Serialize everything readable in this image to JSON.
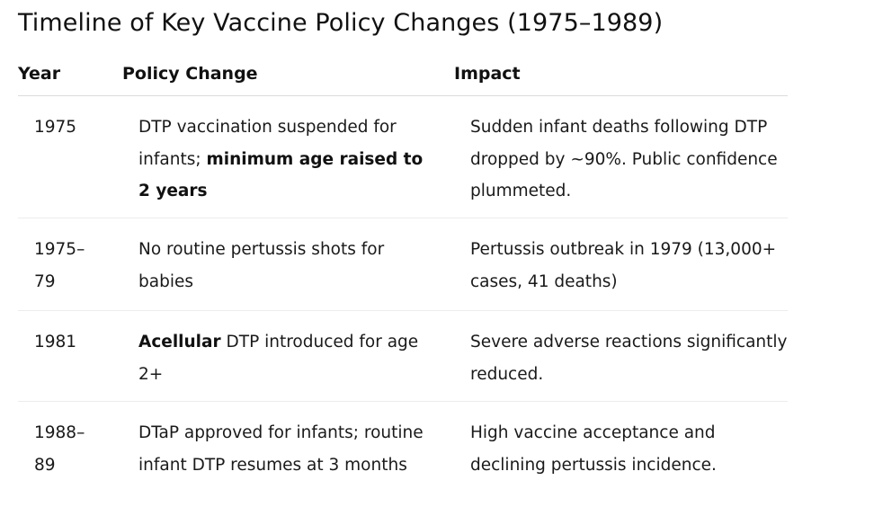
{
  "title": "Timeline of Key Vaccine Policy Changes (1975–1989)",
  "headers": {
    "year": "Year",
    "policy": "Policy Change",
    "impact": "Impact"
  },
  "rows": [
    {
      "year_line1": "1975",
      "year_line2": "",
      "policy_before": "DTP vaccination suspended for infants; ",
      "policy_bold": "minimum age raised to 2 years",
      "policy_after": "",
      "impact": "Sudden infant deaths following DTP dropped by ~90%. Public confidence plummeted."
    },
    {
      "year_line1": "1975–",
      "year_line2": "79",
      "policy_before": "No routine pertussis shots for babies",
      "policy_bold": "",
      "policy_after": "",
      "impact": "Pertussis outbreak in 1979 (13,000+ cases, 41 deaths)"
    },
    {
      "year_line1": "1981",
      "year_line2": "",
      "policy_before": "",
      "policy_bold": "Acellular",
      "policy_after": " DTP introduced for age 2+",
      "impact": "Severe adverse reactions significantly reduced."
    },
    {
      "year_line1": "1988–",
      "year_line2": "89",
      "policy_before": "DTaP approved for infants; routine infant DTP resumes at 3 months",
      "policy_bold": "",
      "policy_after": "",
      "impact": "High vaccine acceptance and declining pertussis incidence."
    }
  ]
}
